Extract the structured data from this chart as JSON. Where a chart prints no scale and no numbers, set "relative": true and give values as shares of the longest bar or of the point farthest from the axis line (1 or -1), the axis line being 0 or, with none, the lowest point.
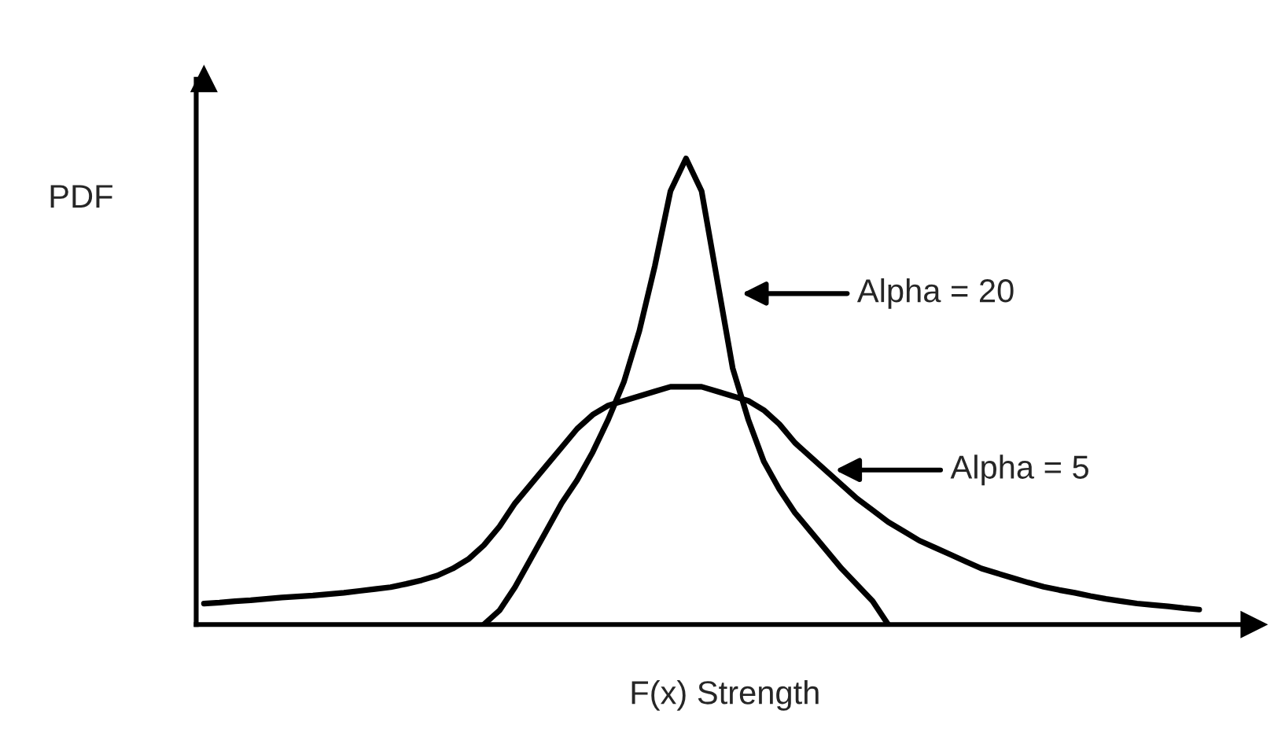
{
  "chart_data": {
    "type": "line",
    "relative": true,
    "xlabel": "F(x) Strength",
    "ylabel": "PDF",
    "categories": [
      null,
      null,
      null,
      null,
      null,
      null,
      null,
      null,
      null,
      null,
      null,
      null,
      null,
      null,
      null,
      null,
      null,
      null,
      null,
      null,
      null,
      null,
      null,
      null,
      null,
      null,
      null,
      null,
      null,
      null,
      null,
      null,
      null,
      null,
      null,
      null,
      null,
      null,
      null,
      null,
      null,
      null,
      null,
      null,
      null,
      null,
      null,
      null,
      null,
      null,
      null,
      null,
      null,
      null,
      null,
      null,
      null,
      null,
      null,
      null,
      null,
      null,
      null,
      null,
      null
    ],
    "series": [
      {
        "color": "#000000",
        "values": [
          null,
          null,
          null,
          null,
          null,
          null,
          null,
          null,
          null,
          null,
          null,
          null,
          null,
          null,
          null,
          null,
          null,
          null,
          0,
          0.03,
          0.08,
          0.14,
          0.2,
          0.26,
          0.31,
          0.37,
          0.44,
          0.52,
          0.63,
          0.77,
          0.93,
          1,
          0.93,
          0.74,
          0.55,
          0.44,
          0.35,
          0.29,
          0.24,
          0.2,
          0.16,
          0.12,
          0.085,
          0.05,
          0,
          null,
          null,
          null,
          null,
          null,
          null,
          null,
          null,
          null,
          null,
          null,
          null,
          null,
          null,
          null,
          null,
          null,
          null,
          null,
          null
        ]
      },
      {
        "color": "#000000",
        "values": [
          0.045,
          0.047,
          0.05,
          0.052,
          0.055,
          0.058,
          0.06,
          0.062,
          0.065,
          0.068,
          0.072,
          0.076,
          0.08,
          0.087,
          0.095,
          0.105,
          0.12,
          0.14,
          0.17,
          0.21,
          0.26,
          0.3,
          0.34,
          0.38,
          0.42,
          0.45,
          0.47,
          0.48,
          0.49,
          0.5,
          0.51,
          0.51,
          0.51,
          0.5,
          0.49,
          0.48,
          0.46,
          0.43,
          0.39,
          0.36,
          0.33,
          0.3,
          0.27,
          0.245,
          0.22,
          0.2,
          0.18,
          0.165,
          0.15,
          0.135,
          0.12,
          0.11,
          0.1,
          0.09,
          0.081,
          0.074,
          0.068,
          0.061,
          0.055,
          0.05,
          0.045,
          0.042,
          0.039,
          0.035,
          0.032
        ]
      }
    ],
    "annotations": [
      "Alpha = 20",
      "Alpha = 5"
    ],
    "line_style": "solid",
    "grid": false
  }
}
